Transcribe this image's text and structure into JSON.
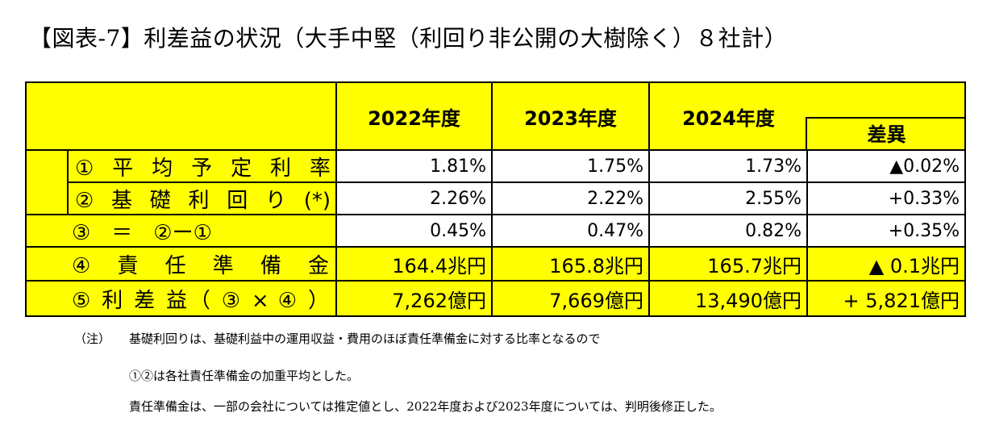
{
  "title": "【図表-7】利差益の状況（大手中堅（利回り非公開の大樹除く）８社計）",
  "table": {
    "years": [
      "2022年度",
      "2023年度",
      "2024年度"
    ],
    "diff_label": "差異",
    "rows": [
      {
        "label": "① 平 均 予 定 利 率",
        "values": [
          "1.81%",
          "1.75%",
          "1.73%"
        ],
        "diff": "▲0.02%"
      },
      {
        "label": "② 基 礎 利 回 り (*)",
        "values": [
          "2.26%",
          "2.22%",
          "2.55%"
        ],
        "diff": "+0.33%"
      },
      {
        "label": "③　＝　②ー①",
        "values": [
          "0.45%",
          "0.47%",
          "0.82%"
        ],
        "diff": "+0.35%"
      },
      {
        "label": "④ 責 任 準 備 金",
        "values": [
          "164.4兆円",
          "165.8兆円",
          "165.7兆円"
        ],
        "diff": "▲ 0.1兆円"
      },
      {
        "label": "⑤ 利 差 益（ ③ × ④ ）",
        "values": [
          "7,262億円",
          "7,669億円",
          "13,490億円"
        ],
        "diff": "+ 5,821億円"
      }
    ]
  },
  "notes": {
    "tag": "（注）",
    "line1": "基礎利回りは、基礎利益中の運用収益・費用のほぼ責任準備金に対する比率となるので",
    "line2": "①②は各社責任準備金の加重平均とした。",
    "line3": "責任準備金は、一部の会社については推定値とし、2022年度および2023年度については、判明後修正した。"
  },
  "colors": {
    "highlight": "#ffff00",
    "border": "#000000"
  }
}
